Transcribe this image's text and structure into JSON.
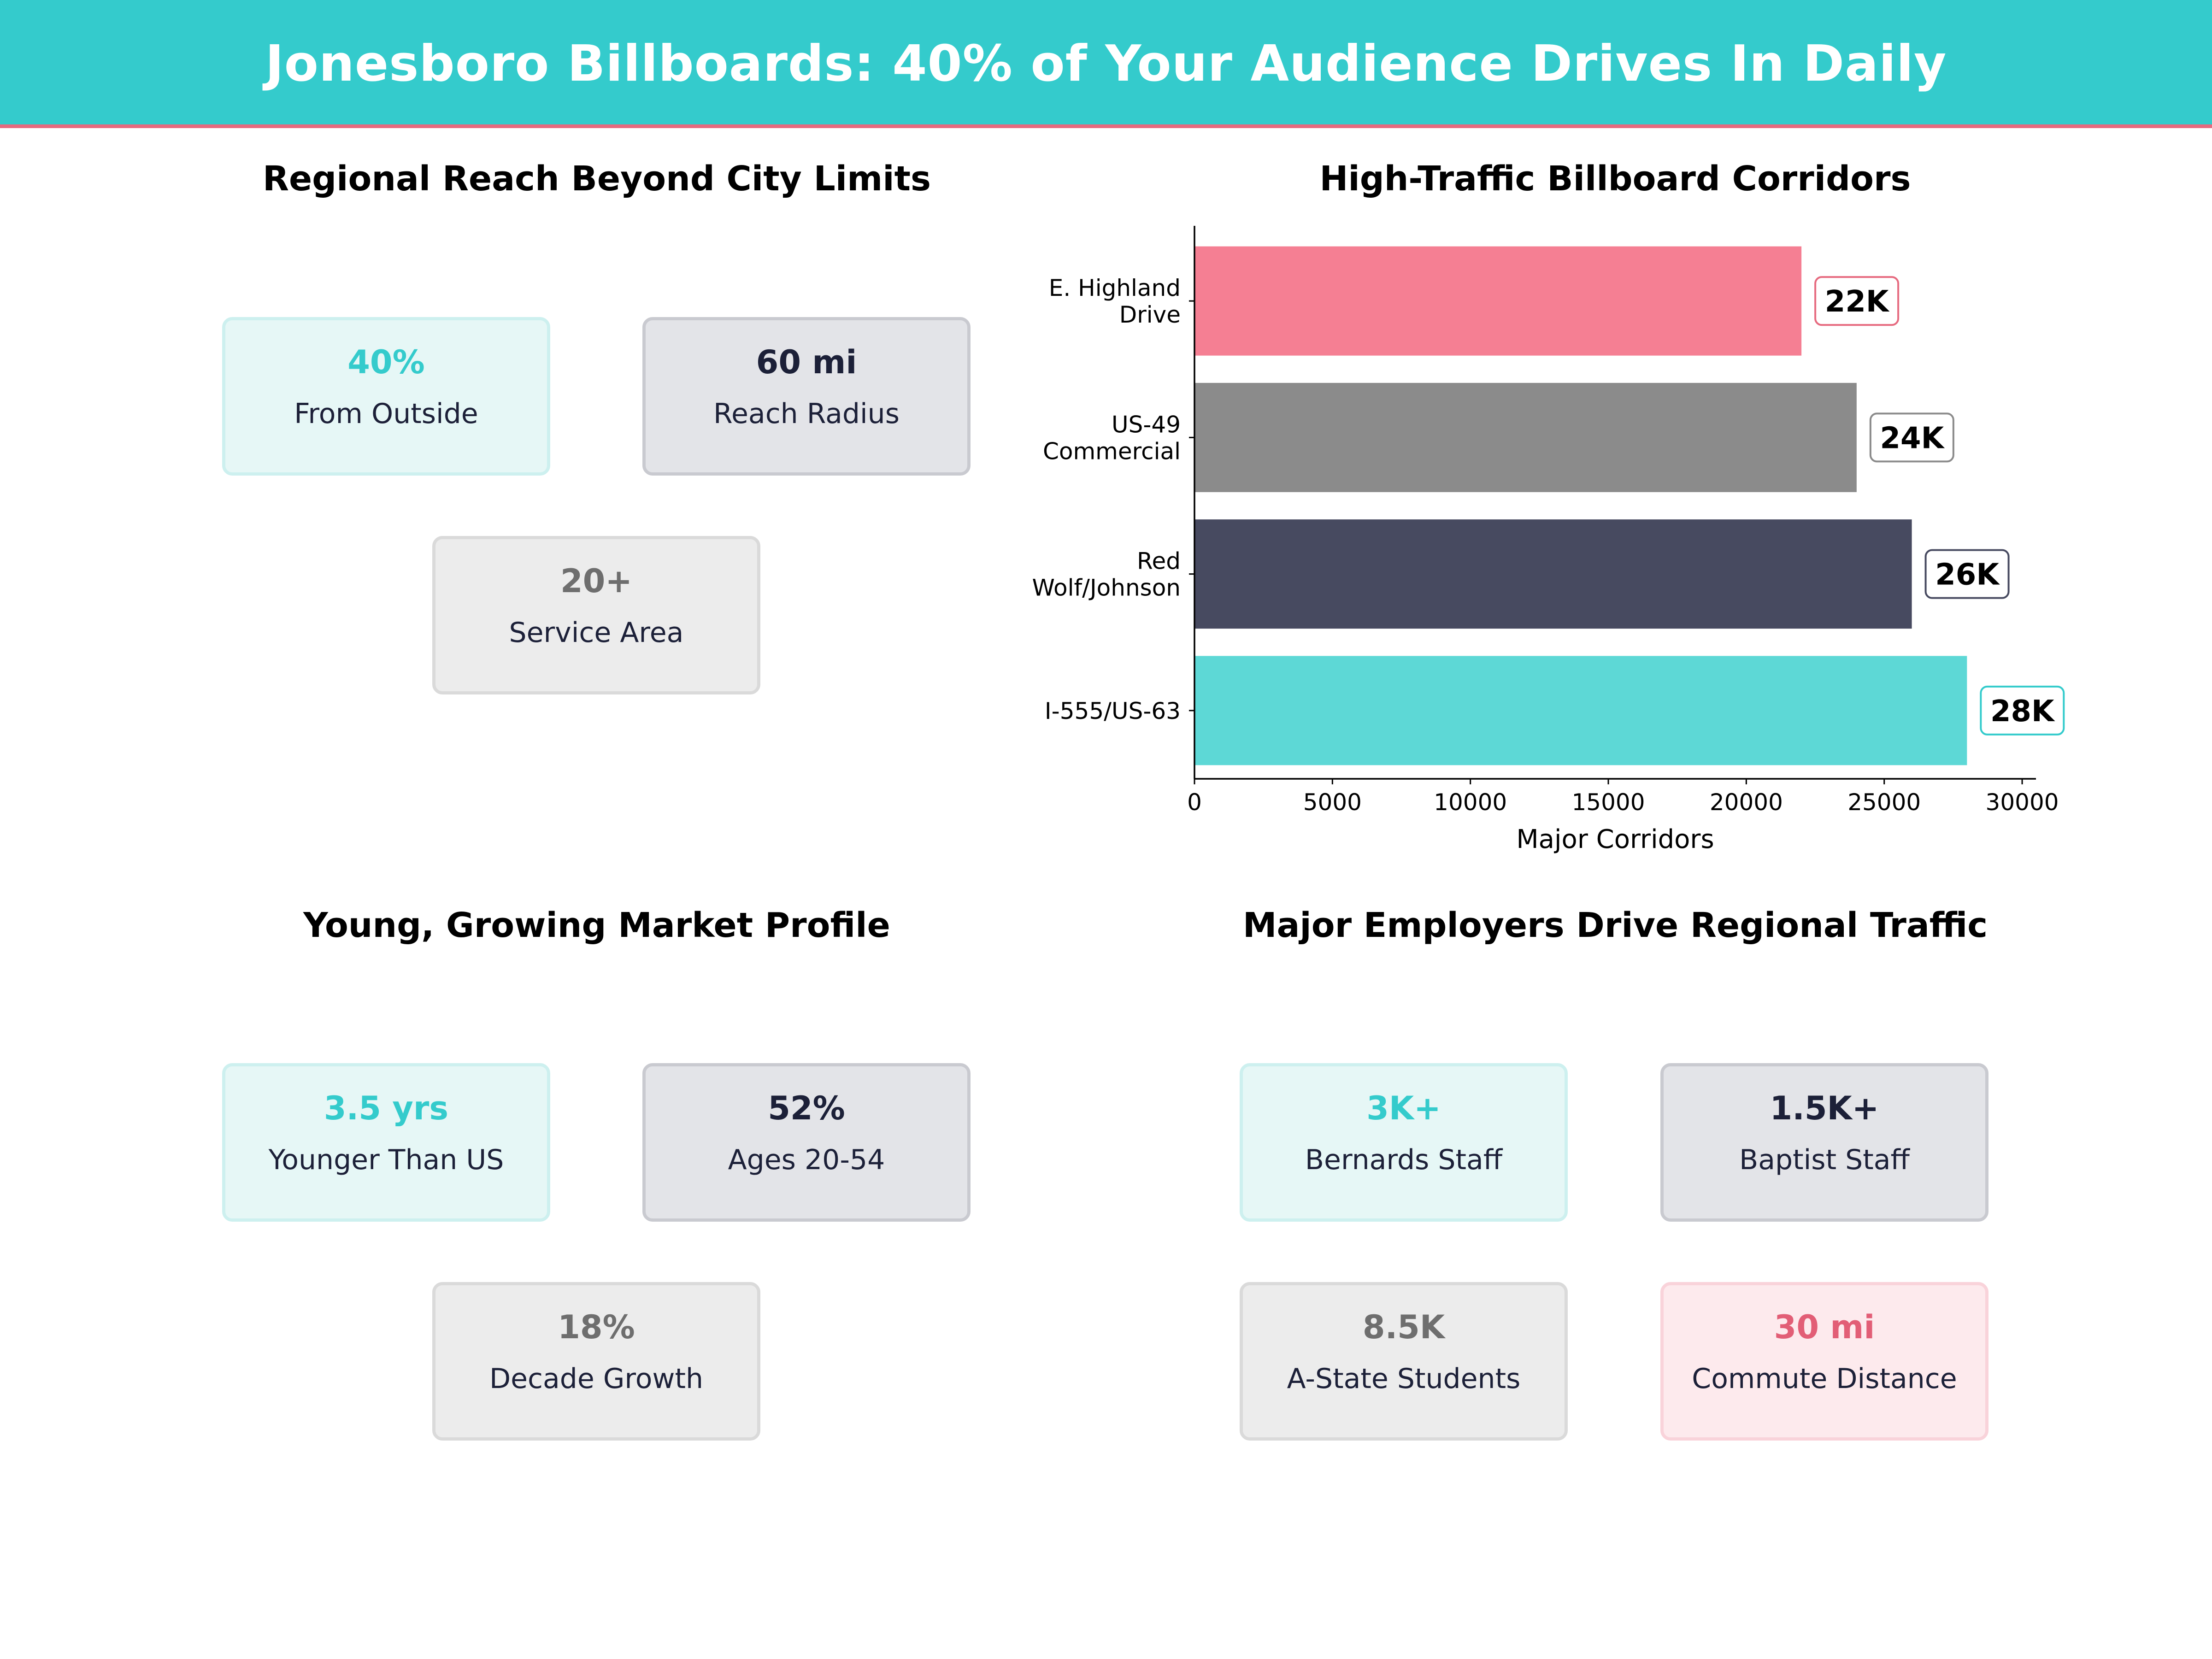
{
  "header": {
    "title": "Jonesboro Billboards: 40% of Your Audience Drives In Daily"
  },
  "colors": {
    "teal": "#34cbcc",
    "navy": "#1c2038",
    "grey": "#6e6e6e",
    "pink": "#e25e76",
    "accent_line": "#e66a7f"
  },
  "regional_reach": {
    "title": "Regional Reach Beyond City Limits",
    "cards": [
      {
        "value": "40%",
        "label": "From Outside",
        "color": "teal"
      },
      {
        "value": "60 mi",
        "label": "Reach Radius",
        "color": "navy"
      },
      {
        "value": "20+",
        "label": "Service Area",
        "color": "grey"
      }
    ]
  },
  "market_profile": {
    "title": "Young, Growing Market Profile",
    "cards": [
      {
        "value": "3.5 yrs",
        "label": "Younger Than US",
        "color": "teal"
      },
      {
        "value": "52%",
        "label": "Ages 20-54",
        "color": "navy"
      },
      {
        "value": "18%",
        "label": "Decade Growth",
        "color": "grey"
      }
    ]
  },
  "employers": {
    "title": "Major Employers Drive Regional Traffic",
    "cards": [
      {
        "value": "3K+",
        "label": "Bernards Staff",
        "color": "teal"
      },
      {
        "value": "1.5K+",
        "label": "Baptist Staff",
        "color": "navy"
      },
      {
        "value": "8.5K",
        "label": "A-State Students",
        "color": "grey"
      },
      {
        "value": "30 mi",
        "label": "Commute Distance",
        "color": "pink"
      }
    ]
  },
  "chart_data": {
    "type": "bar",
    "orientation": "horizontal",
    "title": "High-Traffic Billboard Corridors",
    "xlabel": "Major Corridors",
    "ylabel": "",
    "categories": [
      "I-555/US-63",
      "Red Wolf/Johnson",
      "US-49 Commercial",
      "E. Highland Drive"
    ],
    "category_lines": [
      [
        "I-555/US-63"
      ],
      [
        "Red",
        "Wolf/Johnson"
      ],
      [
        "US-49",
        "Commercial"
      ],
      [
        "E. Highland",
        "Drive"
      ]
    ],
    "values": [
      28000,
      26000,
      24000,
      22000
    ],
    "data_labels": [
      "28K",
      "26K",
      "24K",
      "22K"
    ],
    "bar_colors": [
      "#5dd8d6",
      "#474a60",
      "#8b8b8b",
      "#f57f93"
    ],
    "label_border_colors": [
      "#34cbcc",
      "#474a60",
      "#8b8b8b",
      "#e66a7f"
    ],
    "xlim": [
      0,
      30500
    ],
    "xticks": [
      0,
      5000,
      10000,
      15000,
      20000,
      25000,
      30000
    ],
    "grid": false
  }
}
